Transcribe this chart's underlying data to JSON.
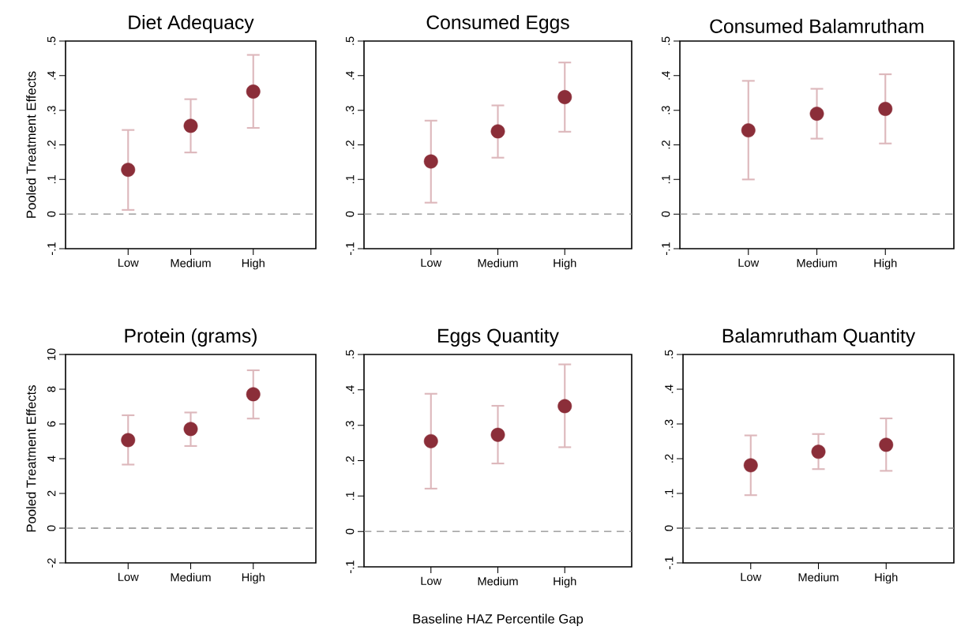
{
  "chart_data": [
    {
      "type": "scatter",
      "title": "Diet Adequacy",
      "ylabel": "Pooled Treatment Effects",
      "categories": [
        "Low",
        "Medium",
        "High"
      ],
      "marker": "circle",
      "grid": false,
      "series": [
        {
          "color": "#8b2e39",
          "values": [
            0.128,
            0.255,
            0.354
          ],
          "errors": [
            [
              0.012,
              0.243
            ],
            [
              0.178,
              0.332
            ],
            [
              0.249,
              0.46
            ]
          ]
        }
      ],
      "ylim": [
        -0.1,
        0.5
      ],
      "yticks": [
        {
          "value": -0.1,
          "label": "-.1"
        },
        0,
        {
          "value": 0.1,
          "label": ".1"
        },
        {
          "value": 0.2,
          "label": ".2"
        },
        {
          "value": 0.3,
          "label": ".3"
        },
        {
          "value": 0.4,
          "label": ".4"
        },
        {
          "value": 0.5,
          "label": ".5"
        }
      ],
      "ref_lines": [
        {
          "axis": "y",
          "value": 0,
          "color": "#8c8c8c",
          "line_style": "dashed"
        }
      ]
    },
    {
      "type": "scatter",
      "title": "Consumed Eggs",
      "categories": [
        "Low",
        "Medium",
        "High"
      ],
      "marker": "circle",
      "grid": false,
      "series": [
        {
          "color": "#8b2e39",
          "values": [
            0.152,
            0.239,
            0.338
          ],
          "errors": [
            [
              0.033,
              0.27
            ],
            [
              0.163,
              0.314
            ],
            [
              0.238,
              0.438
            ]
          ]
        }
      ],
      "ylim": [
        -0.1,
        0.5
      ],
      "yticks": [
        {
          "value": -0.1,
          "label": "-.1"
        },
        0,
        {
          "value": 0.1,
          "label": ".1"
        },
        {
          "value": 0.2,
          "label": ".2"
        },
        {
          "value": 0.3,
          "label": ".3"
        },
        {
          "value": 0.4,
          "label": ".4"
        },
        {
          "value": 0.5,
          "label": ".5"
        }
      ],
      "ref_lines": [
        {
          "axis": "y",
          "value": 0,
          "color": "#8c8c8c",
          "line_style": "dashed"
        }
      ]
    },
    {
      "type": "scatter",
      "title": "Consumed Balamrutham",
      "categories": [
        "Low",
        "Medium",
        "High"
      ],
      "marker": "circle",
      "grid": false,
      "series": [
        {
          "color": "#8b2e39",
          "values": [
            0.242,
            0.29,
            0.304
          ],
          "errors": [
            [
              0.1,
              0.385
            ],
            [
              0.218,
              0.362
            ],
            [
              0.204,
              0.404
            ]
          ]
        }
      ],
      "ylim": [
        -0.1,
        0.5
      ],
      "yticks": [
        {
          "value": -0.1,
          "label": "-.1"
        },
        0,
        {
          "value": 0.1,
          "label": ".1"
        },
        {
          "value": 0.2,
          "label": ".2"
        },
        {
          "value": 0.3,
          "label": ".3"
        },
        {
          "value": 0.4,
          "label": ".4"
        },
        {
          "value": 0.5,
          "label": ".5"
        }
      ],
      "ref_lines": [
        {
          "axis": "y",
          "value": 0,
          "color": "#8c8c8c",
          "line_style": "dashed"
        }
      ]
    },
    {
      "type": "scatter",
      "title": "Protein (grams)",
      "ylabel": "Pooled Treatment Effects",
      "categories": [
        "Low",
        "Medium",
        "High"
      ],
      "marker": "circle",
      "grid": false,
      "series": [
        {
          "color": "#8b2e39",
          "values": [
            5.07,
            5.71,
            7.71
          ],
          "errors": [
            [
              3.66,
              6.5
            ],
            [
              4.73,
              6.66
            ],
            [
              6.31,
              9.09
            ]
          ]
        }
      ],
      "ylim": [
        -2,
        10
      ],
      "yticks": [
        -2,
        0,
        2,
        4,
        6,
        8,
        10
      ],
      "ref_lines": [
        {
          "axis": "y",
          "value": 0,
          "color": "#8c8c8c",
          "line_style": "dashed"
        }
      ]
    },
    {
      "type": "scatter",
      "title": "Eggs Quantity",
      "xlabel": "Baseline HAZ Percentile Gap",
      "categories": [
        "Low",
        "Medium",
        "High"
      ],
      "marker": "circle",
      "grid": false,
      "series": [
        {
          "color": "#8b2e39",
          "values": [
            0.255,
            0.273,
            0.354
          ],
          "errors": [
            [
              0.121,
              0.389
            ],
            [
              0.192,
              0.355
            ],
            [
              0.238,
              0.472
            ]
          ]
        }
      ],
      "ylim": [
        -0.1,
        0.5
      ],
      "yticks": [
        {
          "value": -0.1,
          "label": "-.1"
        },
        0,
        {
          "value": 0.1,
          "label": ".1"
        },
        {
          "value": 0.2,
          "label": ".2"
        },
        {
          "value": 0.3,
          "label": ".3"
        },
        {
          "value": 0.4,
          "label": ".4"
        },
        {
          "value": 0.5,
          "label": ".5"
        }
      ],
      "ref_lines": [
        {
          "axis": "y",
          "value": 0,
          "color": "#8c8c8c",
          "line_style": "dashed"
        }
      ]
    },
    {
      "type": "scatter",
      "title": "Balamrutham Quantity",
      "categories": [
        "Low",
        "Medium",
        "High"
      ],
      "marker": "circle",
      "grid": false,
      "series": [
        {
          "color": "#8b2e39",
          "values": [
            0.181,
            0.22,
            0.24
          ],
          "errors": [
            [
              0.095,
              0.267
            ],
            [
              0.17,
              0.271
            ],
            [
              0.165,
              0.316
            ]
          ]
        }
      ],
      "ylim": [
        -0.1,
        0.5
      ],
      "yticks": [
        {
          "value": -0.1,
          "label": "-.1"
        },
        0,
        {
          "value": 0.1,
          "label": ".1"
        },
        {
          "value": 0.2,
          "label": ".2"
        },
        {
          "value": 0.3,
          "label": ".3"
        },
        {
          "value": 0.4,
          "label": ".4"
        },
        {
          "value": 0.5,
          "label": ".5"
        }
      ],
      "ref_lines": [
        {
          "axis": "y",
          "value": 0,
          "color": "#8c8c8c",
          "line_style": "dashed"
        }
      ]
    }
  ]
}
